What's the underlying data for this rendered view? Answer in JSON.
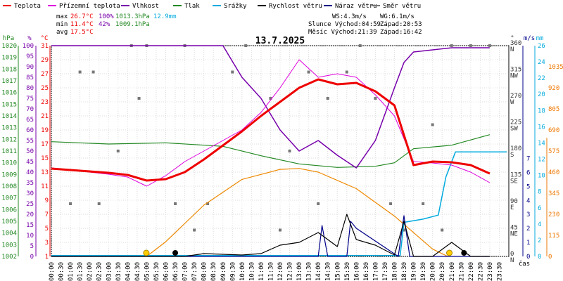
{
  "chart_data": {
    "type": "line",
    "title": "13.7.2025",
    "xlabel": "čas",
    "x_categories": [
      "00:00",
      "00:30",
      "01:00",
      "01:30",
      "02:00",
      "02:30",
      "03:00",
      "03:30",
      "04:00",
      "04:30",
      "05:00",
      "05:30",
      "06:00",
      "06:30",
      "07:00",
      "07:30",
      "08:00",
      "08:30",
      "09:00",
      "09:30",
      "10:00",
      "10:30",
      "11:00",
      "11:30",
      "12:00",
      "12:30",
      "13:00",
      "13:30",
      "14:00",
      "14:30",
      "15:00",
      "15:30",
      "16:00",
      "16:30",
      "17:00",
      "17:30",
      "18:00",
      "18:30",
      "19:00",
      "19:30",
      "20:00",
      "20:30",
      "21:00",
      "21:30",
      "22:00",
      "22:30",
      "23:00",
      "23:30"
    ],
    "axes": {
      "hpa": {
        "unit": "hPa",
        "min": 1002,
        "max": 1020,
        "ticks": [
          1002,
          1003,
          1004,
          1005,
          1006,
          1007,
          1008,
          1009,
          1010,
          1011,
          1012,
          1013,
          1014,
          1015,
          1016,
          1017,
          1018,
          1019,
          1020
        ]
      },
      "pct": {
        "unit": "%",
        "min": 0,
        "max": 100,
        "ticks": [
          0,
          5,
          10,
          15,
          20,
          25,
          30,
          35,
          40,
          45,
          50,
          55,
          60,
          65,
          70,
          75,
          80,
          85,
          90,
          95,
          100
        ]
      },
      "temp": {
        "unit": "°C",
        "min": 1,
        "max": 31,
        "ticks": [
          1,
          3,
          5,
          7,
          9,
          11,
          13,
          15,
          17,
          19,
          21,
          23,
          25,
          27,
          29,
          31
        ]
      },
      "dir": {
        "unit": "°",
        "ticks": [
          {
            "v": 0,
            "t": "0",
            "d": "N"
          },
          {
            "v": 45,
            "t": "45",
            "d": "NE"
          },
          {
            "v": 90,
            "t": "90",
            "d": "E"
          },
          {
            "v": 135,
            "t": "135",
            "d": "SE"
          },
          {
            "v": 180,
            "t": "180",
            "d": "S"
          },
          {
            "v": 225,
            "t": "225",
            "d": "SW"
          },
          {
            "v": 270,
            "t": "270",
            "d": "W"
          },
          {
            "v": 315,
            "t": "315",
            "d": "NW"
          },
          {
            "v": 360,
            "t": "360",
            "d": "N"
          }
        ]
      },
      "ms": {
        "unit": "m/s",
        "min": 0,
        "max": 7,
        "ticks": [
          0,
          1,
          2,
          3,
          4,
          5,
          6,
          7
        ]
      },
      "mm": {
        "unit": "mm",
        "min": 0,
        "max": 26,
        "ticks": [
          0,
          2,
          4,
          6,
          8,
          10,
          12,
          14,
          16,
          18,
          20,
          22,
          24,
          26
        ]
      },
      "rad": {
        "min": 0,
        "max": 1150,
        "ticks": [
          0,
          115,
          230,
          345,
          460,
          575,
          690,
          805,
          920,
          1035
        ]
      }
    },
    "legend": [
      {
        "name": "Teplota",
        "color": "#ee0000"
      },
      {
        "name": "Přízemní teplota",
        "color": "#dd00dd"
      },
      {
        "name": "Vlhkost",
        "color": "#7700aa"
      },
      {
        "name": "Tlak",
        "color": "#228822"
      },
      {
        "name": "Srážky",
        "color": "#00aadd"
      },
      {
        "name": "Rychlost větru",
        "color": "#000000"
      },
      {
        "name": "Náraz větru",
        "color": "#000088"
      },
      {
        "name": "Směr větru",
        "color": "#777777"
      }
    ],
    "stats": {
      "max": {
        "label": "max",
        "temp": "26.7°C",
        "hum": "100%",
        "press": "1013.3hPa",
        "rain": "12.9mm"
      },
      "min": {
        "label": "min",
        "temp": "11.4°C",
        "hum": "42%",
        "press": "1009.1hPa"
      },
      "avg": {
        "label": "avg",
        "temp": "17.5°C"
      }
    },
    "info": {
      "ws": "WS:4.3m/s",
      "wg": "WG:6.1m/s",
      "sun": "Slunce Východ:04:59",
      "sun_set": "Západ:20:53",
      "moon": "Měsíc Východ:21:39",
      "moon_set": "Západ:16:42"
    },
    "series": {
      "temperature": [
        [
          0,
          13.5
        ],
        [
          1,
          13.3
        ],
        [
          2,
          13.1
        ],
        [
          3,
          12.9
        ],
        [
          4,
          12.6
        ],
        [
          5,
          11.8
        ],
        [
          6,
          12
        ],
        [
          7,
          13
        ],
        [
          8,
          14.8
        ],
        [
          9,
          16.8
        ],
        [
          10,
          18.8
        ],
        [
          11,
          21
        ],
        [
          12,
          23
        ],
        [
          13,
          25
        ],
        [
          14,
          26.2
        ],
        [
          15,
          25.5
        ],
        [
          16,
          25.7
        ],
        [
          17,
          24.5
        ],
        [
          18,
          22.5
        ],
        [
          19,
          14
        ],
        [
          20,
          14.5
        ],
        [
          21,
          14.4
        ],
        [
          22,
          14
        ],
        [
          23,
          12.8
        ]
      ],
      "ground_temperature": [
        [
          0,
          13.6
        ],
        [
          1,
          13.3
        ],
        [
          2,
          13
        ],
        [
          3,
          12.7
        ],
        [
          4,
          12.3
        ],
        [
          5,
          11
        ],
        [
          6,
          12.5
        ],
        [
          7,
          14.5
        ],
        [
          8,
          16
        ],
        [
          9,
          17.5
        ],
        [
          10,
          19
        ],
        [
          11,
          21.5
        ],
        [
          12,
          25
        ],
        [
          13,
          29
        ],
        [
          14,
          26.5
        ],
        [
          15,
          27
        ],
        [
          16,
          26.5
        ],
        [
          17,
          24
        ],
        [
          18,
          21
        ],
        [
          19,
          14.5
        ],
        [
          20,
          14.3
        ],
        [
          21,
          14
        ],
        [
          22,
          13
        ],
        [
          23,
          11.5
        ]
      ],
      "humidity": [
        [
          0,
          100
        ],
        [
          3,
          100
        ],
        [
          6,
          100
        ],
        [
          9,
          100
        ],
        [
          10,
          85
        ],
        [
          11,
          75
        ],
        [
          12,
          60
        ],
        [
          13,
          50
        ],
        [
          14,
          55
        ],
        [
          15,
          48
        ],
        [
          16,
          42
        ],
        [
          17,
          55
        ],
        [
          18,
          80
        ],
        [
          18.5,
          92
        ],
        [
          19,
          97
        ],
        [
          21,
          99
        ],
        [
          23,
          99
        ]
      ],
      "pressure": [
        [
          0,
          1011.8
        ],
        [
          3,
          1011.6
        ],
        [
          6,
          1011.7
        ],
        [
          9,
          1011.4
        ],
        [
          11,
          1010.6
        ],
        [
          13,
          1009.9
        ],
        [
          15,
          1009.6
        ],
        [
          17,
          1009.7
        ],
        [
          18,
          1010
        ],
        [
          19,
          1011.2
        ],
        [
          21,
          1011.5
        ],
        [
          23,
          1012.4
        ]
      ],
      "rain": [
        [
          0,
          0.1
        ],
        [
          18.3,
          0.1
        ],
        [
          18.5,
          4.2
        ],
        [
          19.5,
          4.6
        ],
        [
          20.3,
          5.1
        ],
        [
          20.7,
          9.8
        ],
        [
          21.2,
          12.9
        ],
        [
          23.9,
          12.9
        ]
      ],
      "wind_speed": [
        [
          0,
          0
        ],
        [
          3,
          0
        ],
        [
          7,
          0
        ],
        [
          8,
          0.2
        ],
        [
          10,
          0.1
        ],
        [
          11,
          0.2
        ],
        [
          12,
          0.8
        ],
        [
          13,
          1
        ],
        [
          14,
          1.7
        ],
        [
          15,
          0.7
        ],
        [
          15.5,
          3
        ],
        [
          16,
          1.2
        ],
        [
          17,
          0.8
        ],
        [
          18,
          0.1
        ],
        [
          18.5,
          2.5
        ],
        [
          19,
          0
        ],
        [
          20,
          0
        ],
        [
          21,
          1
        ],
        [
          22,
          0
        ],
        [
          23,
          0
        ]
      ],
      "wind_gust": [
        [
          0,
          0
        ],
        [
          14,
          0
        ],
        [
          14.2,
          2.2
        ],
        [
          14.5,
          0
        ],
        [
          15.5,
          0
        ],
        [
          15.7,
          2.5
        ],
        [
          16,
          2
        ],
        [
          18.2,
          0
        ],
        [
          18.5,
          2.9
        ],
        [
          18.8,
          0
        ],
        [
          23,
          0
        ]
      ],
      "wind_dir_points": [
        [
          1,
          90
        ],
        [
          1.5,
          315
        ],
        [
          2.2,
          315
        ],
        [
          2.5,
          90
        ],
        [
          3.5,
          180
        ],
        [
          4.2,
          360
        ],
        [
          4.6,
          270
        ],
        [
          5,
          360
        ],
        [
          6.5,
          90
        ],
        [
          7,
          360
        ],
        [
          7.5,
          45
        ],
        [
          8.2,
          90
        ],
        [
          9.5,
          315
        ],
        [
          10.2,
          360
        ],
        [
          11.5,
          270
        ],
        [
          12,
          45
        ],
        [
          12.5,
          180
        ],
        [
          13.5,
          315
        ],
        [
          14,
          90
        ],
        [
          14.5,
          270
        ],
        [
          15.5,
          315
        ],
        [
          16.2,
          360
        ],
        [
          17,
          270
        ],
        [
          17.8,
          90
        ],
        [
          18.5,
          45
        ],
        [
          19.5,
          90
        ],
        [
          20,
          225
        ],
        [
          20.5,
          45
        ],
        [
          21,
          360
        ],
        [
          22,
          360
        ],
        [
          23,
          360
        ]
      ],
      "radiation": [
        [
          5,
          0
        ],
        [
          6,
          80
        ],
        [
          8,
          280
        ],
        [
          10,
          420
        ],
        [
          12,
          475
        ],
        [
          13,
          480
        ],
        [
          14,
          460
        ],
        [
          16,
          370
        ],
        [
          18,
          220
        ],
        [
          19,
          130
        ],
        [
          20,
          40
        ],
        [
          20.8,
          0
        ]
      ]
    }
  }
}
